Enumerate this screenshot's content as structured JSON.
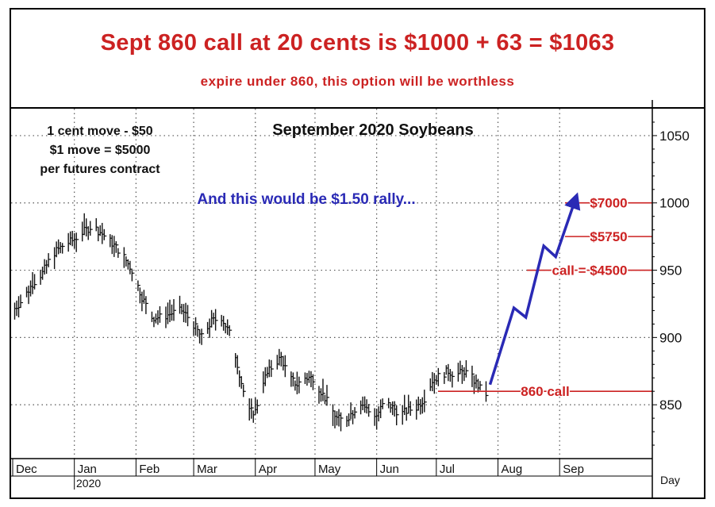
{
  "header": {
    "headline": "Sept 860 call at 20 cents is $1000 + 63 = $1063",
    "subheadline": "expire under 860, this option will be worthless"
  },
  "chart_data": {
    "type": "bar",
    "title": "September 2020 Soybeans",
    "notes": [
      "1 cent move - $50",
      "$1 move = $5000",
      "per futures contract"
    ],
    "rally_note": "And this would be $1.50 rally...",
    "ylim": [
      810,
      1070
    ],
    "y_ticks": [
      850,
      900,
      950,
      1000,
      1050
    ],
    "x_months": [
      "Dec",
      "Jan",
      "Feb",
      "Mar",
      "Apr",
      "May",
      "Jun",
      "Jul",
      "Aug",
      "Sep"
    ],
    "year_label": "2020",
    "x_unit": "Day",
    "grid": true,
    "price_path": [
      [
        0,
        920
      ],
      [
        5,
        928
      ],
      [
        10,
        940
      ],
      [
        15,
        948
      ],
      [
        20,
        962
      ],
      [
        25,
        968
      ],
      [
        30,
        972
      ],
      [
        35,
        978
      ],
      [
        40,
        983
      ],
      [
        45,
        977
      ],
      [
        50,
        970
      ],
      [
        55,
        962
      ],
      [
        60,
        950
      ],
      [
        65,
        930
      ],
      [
        70,
        915
      ],
      [
        75,
        915
      ],
      [
        80,
        918
      ],
      [
        85,
        920
      ],
      [
        90,
        912
      ],
      [
        95,
        900
      ],
      [
        100,
        912
      ],
      [
        105,
        915
      ],
      [
        110,
        900
      ],
      [
        113,
        880
      ],
      [
        116,
        860
      ],
      [
        119,
        845
      ],
      [
        122,
        845
      ],
      [
        126,
        868
      ],
      [
        131,
        880
      ],
      [
        135,
        885
      ],
      [
        139,
        870
      ],
      [
        143,
        865
      ],
      [
        147,
        870
      ],
      [
        151,
        870
      ],
      [
        155,
        860
      ],
      [
        159,
        850
      ],
      [
        163,
        840
      ],
      [
        167,
        838
      ],
      [
        171,
        845
      ],
      [
        175,
        852
      ],
      [
        179,
        845
      ],
      [
        183,
        842
      ],
      [
        187,
        852
      ],
      [
        191,
        848
      ],
      [
        195,
        843
      ],
      [
        199,
        846
      ],
      [
        203,
        848
      ],
      [
        207,
        855
      ],
      [
        211,
        868
      ],
      [
        215,
        872
      ],
      [
        219,
        875
      ],
      [
        223,
        872
      ],
      [
        227,
        875
      ],
      [
        231,
        870
      ],
      [
        235,
        862
      ],
      [
        238,
        858
      ]
    ],
    "projection": [
      [
        240,
        865
      ],
      [
        252,
        922
      ],
      [
        258,
        915
      ],
      [
        267,
        968
      ],
      [
        273,
        960
      ],
      [
        283,
        1003
      ]
    ],
    "annotations": [
      {
        "label": "$7000",
        "value": 1000
      },
      {
        "label": "$5750",
        "value": 975
      },
      {
        "label": "call = $4500",
        "value": 950
      },
      {
        "label": "860 call",
        "value": 860
      }
    ],
    "colors": {
      "bars": "#111111",
      "projection": "#2a2ab5",
      "annotations": "#cc2222",
      "grid": "#555555"
    }
  }
}
